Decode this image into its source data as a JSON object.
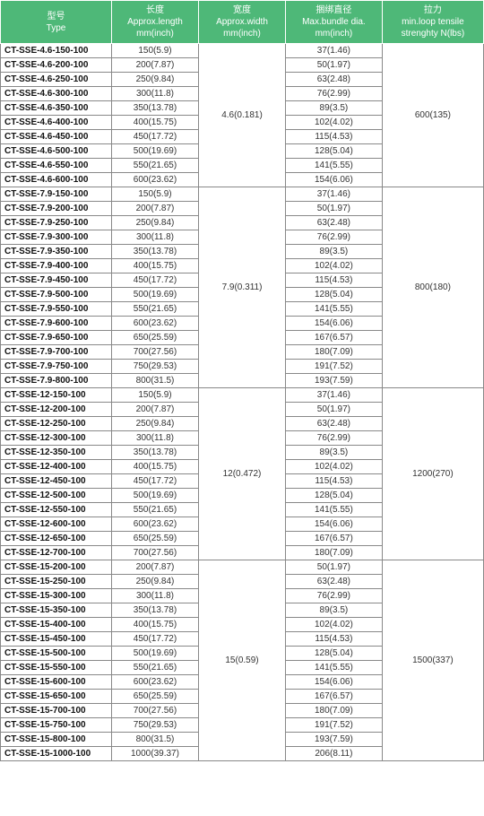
{
  "headers": {
    "h1_cn": "型号",
    "h1_en": "Type",
    "h2_cn": "长度",
    "h2_en": "Approx.length",
    "h2_unit": "mm(inch)",
    "h3_cn": "宽度",
    "h3_en": "Approx.width",
    "h3_unit": "mm(inch)",
    "h4_cn": "捆绑直径",
    "h4_en": "Max.bundle dia.",
    "h4_unit": "mm(inch)",
    "h5_cn": "拉力",
    "h5_en": "min.loop tensile",
    "h5_unit": "strenghty N(lbs)"
  },
  "groups": [
    {
      "width": "4.6(0.181)",
      "strength": "600(135)",
      "rows": [
        {
          "type": "CT-SSE-4.6-150-100",
          "len": "150(5.9)",
          "dia": "37(1.46)"
        },
        {
          "type": "CT-SSE-4.6-200-100",
          "len": "200(7.87)",
          "dia": "50(1.97)"
        },
        {
          "type": "CT-SSE-4.6-250-100",
          "len": "250(9.84)",
          "dia": "63(2.48)"
        },
        {
          "type": "CT-SSE-4.6-300-100",
          "len": "300(11.8)",
          "dia": "76(2.99)"
        },
        {
          "type": "CT-SSE-4.6-350-100",
          "len": "350(13.78)",
          "dia": "89(3.5)"
        },
        {
          "type": "CT-SSE-4.6-400-100",
          "len": "400(15.75)",
          "dia": "102(4.02)"
        },
        {
          "type": "CT-SSE-4.6-450-100",
          "len": "450(17.72)",
          "dia": "115(4.53)"
        },
        {
          "type": "CT-SSE-4.6-500-100",
          "len": "500(19.69)",
          "dia": "128(5.04)"
        },
        {
          "type": "CT-SSE-4.6-550-100",
          "len": "550(21.65)",
          "dia": "141(5.55)"
        },
        {
          "type": "CT-SSE-4.6-600-100",
          "len": "600(23.62)",
          "dia": "154(6.06)"
        }
      ]
    },
    {
      "width": "7.9(0.311)",
      "strength": "800(180)",
      "rows": [
        {
          "type": "CT-SSE-7.9-150-100",
          "len": "150(5.9)",
          "dia": "37(1.46)"
        },
        {
          "type": "CT-SSE-7.9-200-100",
          "len": "200(7.87)",
          "dia": "50(1.97)"
        },
        {
          "type": "CT-SSE-7.9-250-100",
          "len": "250(9.84)",
          "dia": "63(2.48)"
        },
        {
          "type": "CT-SSE-7.9-300-100",
          "len": "300(11.8)",
          "dia": "76(2.99)"
        },
        {
          "type": "CT-SSE-7.9-350-100",
          "len": "350(13.78)",
          "dia": "89(3.5)"
        },
        {
          "type": "CT-SSE-7.9-400-100",
          "len": "400(15.75)",
          "dia": "102(4.02)"
        },
        {
          "type": "CT-SSE-7.9-450-100",
          "len": "450(17.72)",
          "dia": "115(4.53)"
        },
        {
          "type": "CT-SSE-7.9-500-100",
          "len": "500(19.69)",
          "dia": "128(5.04)"
        },
        {
          "type": "CT-SSE-7.9-550-100",
          "len": "550(21.65)",
          "dia": "141(5.55)"
        },
        {
          "type": "CT-SSE-7.9-600-100",
          "len": "600(23.62)",
          "dia": "154(6.06)"
        },
        {
          "type": "CT-SSE-7.9-650-100",
          "len": "650(25.59)",
          "dia": "167(6.57)"
        },
        {
          "type": "CT-SSE-7.9-700-100",
          "len": "700(27.56)",
          "dia": "180(7.09)"
        },
        {
          "type": "CT-SSE-7.9-750-100",
          "len": "750(29.53)",
          "dia": "191(7.52)"
        },
        {
          "type": "CT-SSE-7.9-800-100",
          "len": "800(31.5)",
          "dia": "193(7.59)"
        }
      ]
    },
    {
      "width": "12(0.472)",
      "strength": "1200(270)",
      "rows": [
        {
          "type": "CT-SSE-12-150-100",
          "len": "150(5.9)",
          "dia": "37(1.46)"
        },
        {
          "type": "CT-SSE-12-200-100",
          "len": "200(7.87)",
          "dia": "50(1.97)"
        },
        {
          "type": "CT-SSE-12-250-100",
          "len": "250(9.84)",
          "dia": "63(2.48)"
        },
        {
          "type": "CT-SSE-12-300-100",
          "len": "300(11.8)",
          "dia": "76(2.99)"
        },
        {
          "type": "CT-SSE-12-350-100",
          "len": "350(13.78)",
          "dia": "89(3.5)"
        },
        {
          "type": "CT-SSE-12-400-100",
          "len": "400(15.75)",
          "dia": "102(4.02)"
        },
        {
          "type": "CT-SSE-12-450-100",
          "len": "450(17.72)",
          "dia": "115(4.53)"
        },
        {
          "type": "CT-SSE-12-500-100",
          "len": "500(19.69)",
          "dia": "128(5.04)"
        },
        {
          "type": "CT-SSE-12-550-100",
          "len": "550(21.65)",
          "dia": "141(5.55)"
        },
        {
          "type": "CT-SSE-12-600-100",
          "len": "600(23.62)",
          "dia": "154(6.06)"
        },
        {
          "type": "CT-SSE-12-650-100",
          "len": "650(25.59)",
          "dia": "167(6.57)"
        },
        {
          "type": "CT-SSE-12-700-100",
          "len": "700(27.56)",
          "dia": "180(7.09)"
        }
      ]
    },
    {
      "width": "15(0.59)",
      "strength": "1500(337)",
      "rows": [
        {
          "type": "CT-SSE-15-200-100",
          "len": "200(7.87)",
          "dia": "50(1.97)"
        },
        {
          "type": "CT-SSE-15-250-100",
          "len": "250(9.84)",
          "dia": "63(2.48)"
        },
        {
          "type": "CT-SSE-15-300-100",
          "len": "300(11.8)",
          "dia": "76(2.99)"
        },
        {
          "type": "CT-SSE-15-350-100",
          "len": "350(13.78)",
          "dia": "89(3.5)"
        },
        {
          "type": "CT-SSE-15-400-100",
          "len": "400(15.75)",
          "dia": "102(4.02)"
        },
        {
          "type": "CT-SSE-15-450-100",
          "len": "450(17.72)",
          "dia": "115(4.53)"
        },
        {
          "type": "CT-SSE-15-500-100",
          "len": "500(19.69)",
          "dia": "128(5.04)"
        },
        {
          "type": "CT-SSE-15-550-100",
          "len": "550(21.65)",
          "dia": "141(5.55)"
        },
        {
          "type": "CT-SSE-15-600-100",
          "len": "600(23.62)",
          "dia": "154(6.06)"
        },
        {
          "type": "CT-SSE-15-650-100",
          "len": "650(25.59)",
          "dia": "167(6.57)"
        },
        {
          "type": "CT-SSE-15-700-100",
          "len": "700(27.56)",
          "dia": "180(7.09)"
        },
        {
          "type": "CT-SSE-15-750-100",
          "len": "750(29.53)",
          "dia": "191(7.52)"
        },
        {
          "type": "CT-SSE-15-800-100",
          "len": "800(31.5)",
          "dia": "193(7.59)"
        },
        {
          "type": "CT-SSE-15-1000-100",
          "len": "1000(39.37)",
          "dia": "206(8.11)"
        }
      ]
    }
  ]
}
